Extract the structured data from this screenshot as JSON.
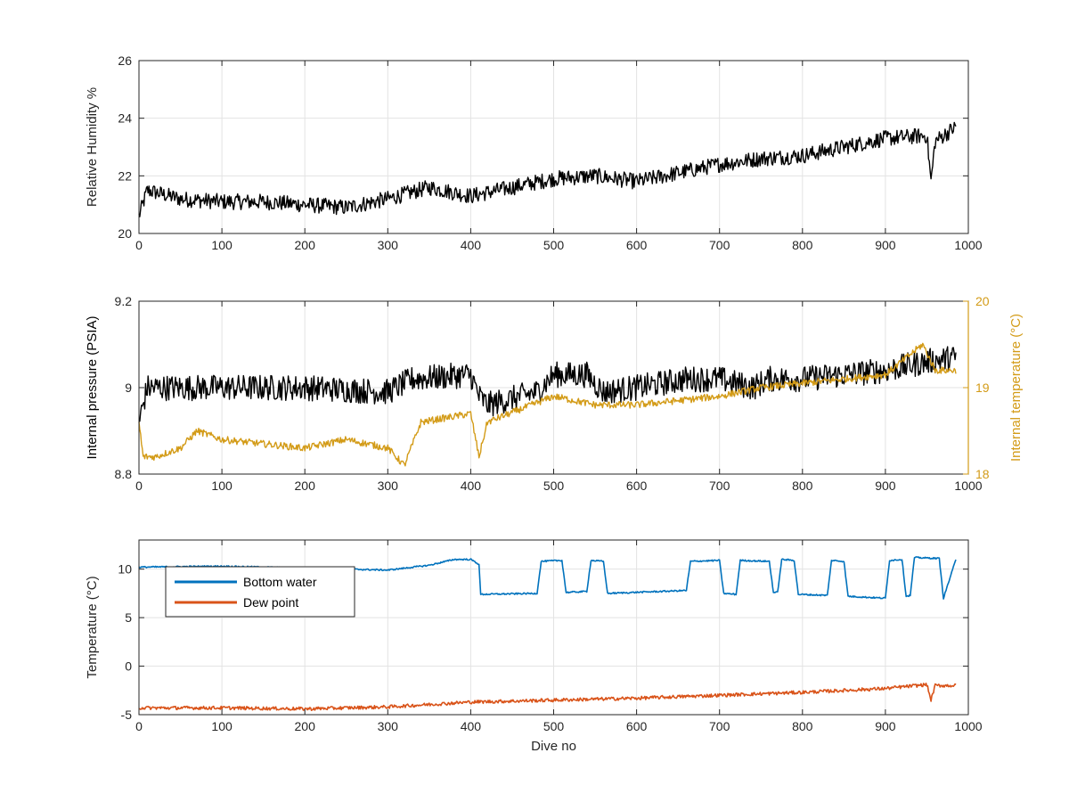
{
  "chart_data": [
    {
      "type": "line",
      "ylabel": "Relative Humidity %",
      "xlim": [
        0,
        1000
      ],
      "ylim": [
        20,
        26
      ],
      "xticks": [
        "0",
        "100",
        "200",
        "300",
        "400",
        "500",
        "600",
        "700",
        "800",
        "900",
        "1000"
      ],
      "yticks": [
        "20",
        "22",
        "24",
        "26"
      ],
      "grid": true,
      "series": [
        {
          "color": "#000000",
          "x": [
            0,
            10,
            50,
            100,
            150,
            200,
            250,
            300,
            350,
            400,
            450,
            500,
            550,
            600,
            650,
            700,
            750,
            800,
            850,
            900,
            950,
            955,
            960,
            985
          ],
          "y": [
            20.6,
            21.5,
            21.2,
            21.1,
            21.1,
            21.0,
            20.9,
            21.2,
            21.6,
            21.3,
            21.6,
            21.9,
            22.0,
            21.8,
            22.1,
            22.4,
            22.6,
            22.7,
            23.0,
            23.3,
            23.4,
            21.8,
            23.2,
            23.7
          ],
          "noise": 0.55
        }
      ]
    },
    {
      "type": "line",
      "ylabel": "Internal pressure (PSIA)",
      "ylabel_right": "Internal temperature (°C)",
      "xlim": [
        0,
        1000
      ],
      "ylim": [
        8.8,
        9.2
      ],
      "ylim_right": [
        18,
        20
      ],
      "xticks": [
        "0",
        "100",
        "200",
        "300",
        "400",
        "500",
        "600",
        "700",
        "800",
        "900",
        "1000"
      ],
      "yticks": [
        "8.8",
        "9",
        "9.2"
      ],
      "yticks_right": [
        "18",
        "19",
        "20"
      ],
      "grid": true,
      "right_axis_color": "#D39B17",
      "series": [
        {
          "axis": "left",
          "color": "#000000",
          "x": [
            0,
            10,
            60,
            100,
            200,
            300,
            330,
            400,
            410,
            420,
            480,
            500,
            540,
            560,
            600,
            660,
            700,
            740,
            760,
            780,
            800,
            900,
            950,
            985
          ],
          "y": [
            8.92,
            9.0,
            9.0,
            9.0,
            9.0,
            8.99,
            9.02,
            9.03,
            8.98,
            8.96,
            8.99,
            9.03,
            9.03,
            8.99,
            9.0,
            9.02,
            9.02,
            9.0,
            9.02,
            9.02,
            9.02,
            9.04,
            9.06,
            9.07
          ],
          "noise": 0.06
        },
        {
          "axis": "right",
          "color": "#D39B17",
          "x": [
            0,
            5,
            20,
            50,
            70,
            100,
            200,
            250,
            300,
            320,
            340,
            400,
            410,
            420,
            500,
            550,
            600,
            650,
            700,
            750,
            800,
            850,
            900,
            945,
            960,
            985
          ],
          "y": [
            18.6,
            18.2,
            18.2,
            18.3,
            18.5,
            18.4,
            18.3,
            18.4,
            18.3,
            18.1,
            18.6,
            18.7,
            18.2,
            18.6,
            18.9,
            18.8,
            18.8,
            18.85,
            18.9,
            19.0,
            19.05,
            19.1,
            19.15,
            19.5,
            19.2,
            19.2
          ],
          "noise": 0.08
        }
      ]
    },
    {
      "type": "line",
      "xlabel": "Dive no",
      "ylabel": "Temperature (°C)",
      "xlim": [
        0,
        1000
      ],
      "ylim": [
        -5,
        13
      ],
      "xticks": [
        "0",
        "100",
        "200",
        "300",
        "400",
        "500",
        "600",
        "700",
        "800",
        "900",
        "1000"
      ],
      "yticks": [
        "-5",
        "0",
        "5",
        "10"
      ],
      "grid": true,
      "legend": "top-left",
      "series": [
        {
          "name": "Bottom water",
          "color": "#0072BD",
          "x": [
            0,
            100,
            200,
            300,
            350,
            380,
            400,
            410,
            412,
            480,
            485,
            510,
            515,
            540,
            545,
            560,
            565,
            660,
            665,
            700,
            705,
            720,
            725,
            760,
            765,
            770,
            775,
            790,
            795,
            830,
            835,
            850,
            855,
            900,
            905,
            920,
            925,
            930,
            935,
            965,
            970,
            985
          ],
          "y": [
            10.2,
            10.3,
            10.1,
            9.9,
            10.4,
            11.0,
            11.0,
            10.5,
            7.4,
            7.5,
            10.8,
            10.9,
            7.6,
            7.7,
            10.9,
            10.8,
            7.5,
            7.8,
            10.8,
            10.9,
            7.5,
            7.4,
            10.9,
            10.8,
            7.6,
            7.6,
            11.0,
            10.9,
            7.4,
            7.3,
            10.9,
            10.8,
            7.2,
            7.0,
            10.9,
            11.0,
            7.2,
            7.3,
            11.2,
            11.1,
            7.0,
            11.0
          ],
          "noise": 0.15
        },
        {
          "name": "Dew point",
          "color": "#D95319",
          "x": [
            0,
            100,
            200,
            300,
            400,
            500,
            600,
            700,
            800,
            900,
            950,
            955,
            960,
            985
          ],
          "y": [
            -4.3,
            -4.3,
            -4.4,
            -4.2,
            -3.7,
            -3.5,
            -3.3,
            -3.0,
            -2.7,
            -2.3,
            -1.9,
            -3.5,
            -2.0,
            -2.0
          ],
          "noise": 0.35
        }
      ]
    }
  ]
}
